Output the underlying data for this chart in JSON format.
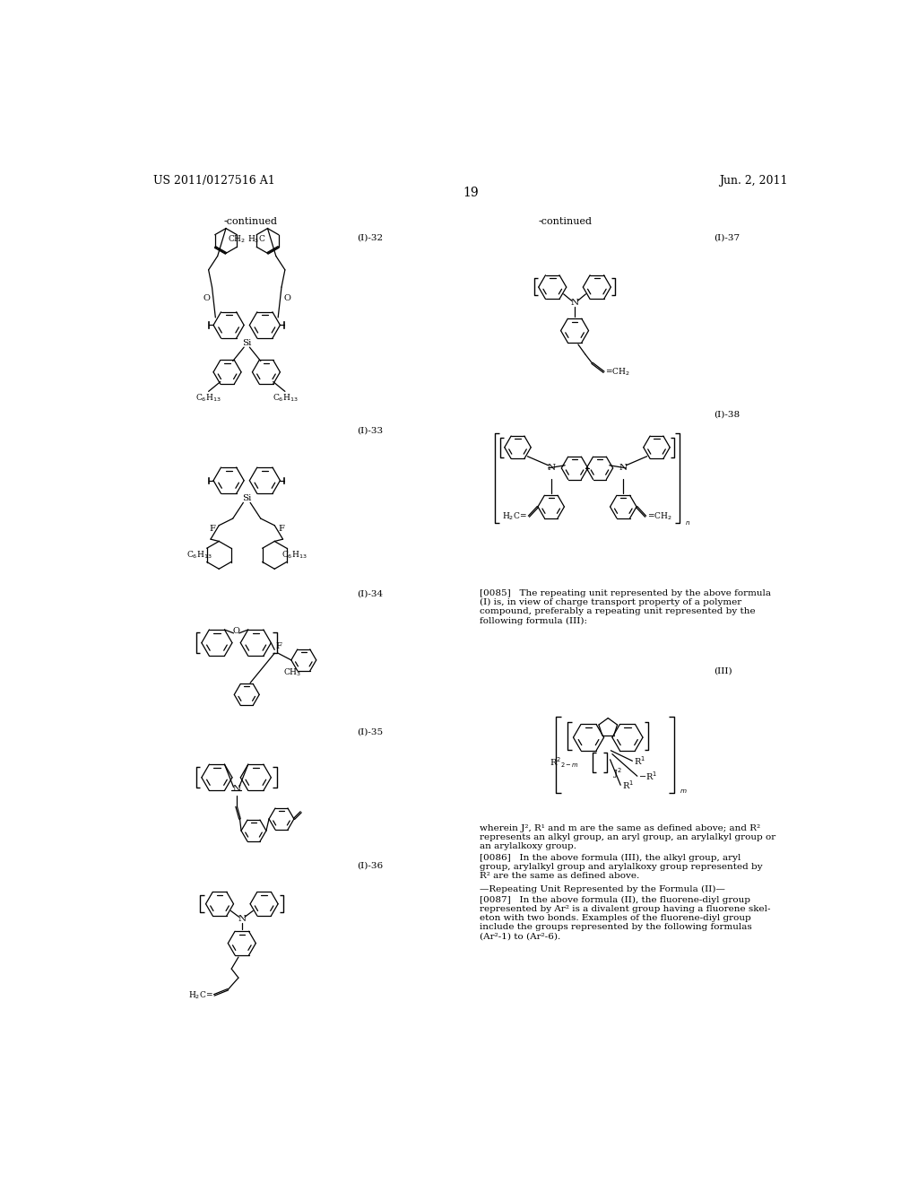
{
  "title_left": "US 2011/0127516 A1",
  "title_right": "Jun. 2, 2011",
  "page_number": "19",
  "background_color": "#ffffff",
  "text_color": "#000000",
  "continued_left": "-continued",
  "continued_right": "-continued",
  "labels": {
    "I32": "(I)-32",
    "I33": "(I)-33",
    "I34": "(I)-34",
    "I35": "(I)-35",
    "I36": "(I)-36",
    "I37": "(I)-37",
    "I38": "(I)-38",
    "III": "(III)"
  },
  "text_0085_lines": [
    "[0085]   The repeating unit represented by the above formula",
    "(I) is, in view of charge transport property of a polymer",
    "compound, preferably a repeating unit represented by the",
    "following formula (III):"
  ],
  "text_wherein_lines": [
    "wherein J², R¹ and m are the same as defined above; and R²",
    "represents an alkyl group, an aryl group, an arylalkyl group or",
    "an arylalkoxy group."
  ],
  "text_0086_lines": [
    "[0086]   In the above formula (III), the alkyl group, aryl",
    "group, arylalkyl group and arylalkoxy group represented by",
    "R² are the same as defined above."
  ],
  "text_repeating": "—Repeating Unit Represented by the Formula (II)—",
  "text_0087_lines": [
    "[0087]   In the above formula (II), the fluorene-diyl group",
    "represented by Ar² is a divalent group having a fluorene skel-",
    "eton with two bonds. Examples of the fluorene-diyl group",
    "include the groups represented by the following formulas",
    "(Ar²-1) to (Ar²-6)."
  ]
}
